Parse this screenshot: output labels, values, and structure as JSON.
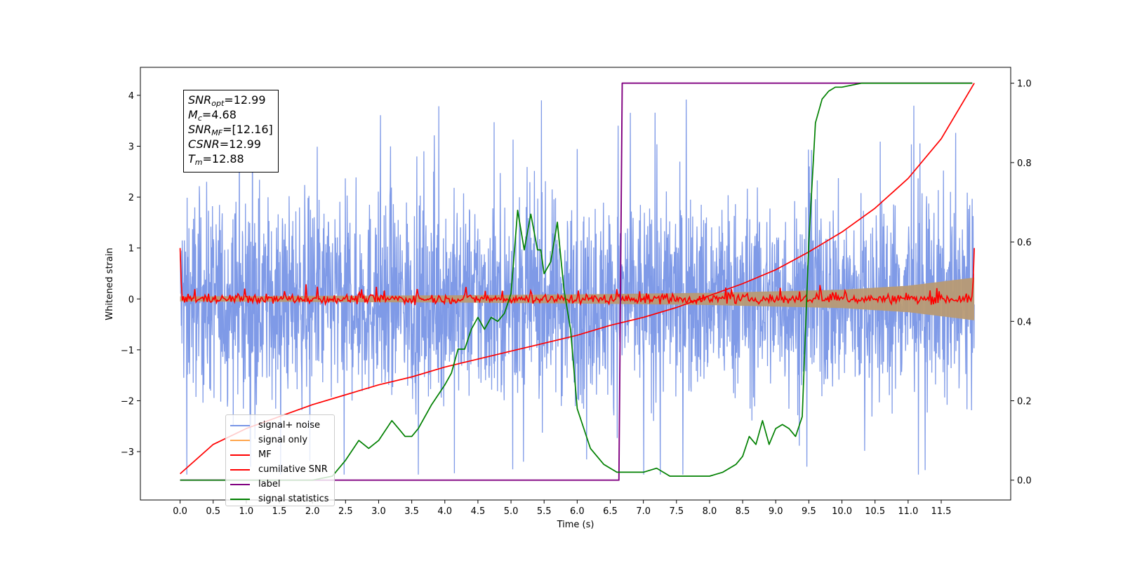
{
  "chart_data": {
    "type": "line",
    "xlabel": "Time (s)",
    "ylabel": "Whitened strain",
    "xlim": [
      -0.6,
      12.55
    ],
    "ylim": [
      -3.95,
      4.55
    ],
    "y2lim": [
      -0.05,
      1.04
    ],
    "xticks": [
      "0.0",
      "0.5",
      "1.0",
      "1.5",
      "2.0",
      "2.5",
      "3.0",
      "3.5",
      "4.0",
      "4.5",
      "5.0",
      "5.5",
      "6.0",
      "6.5",
      "7.0",
      "7.5",
      "8.0",
      "8.5",
      "9.0",
      "9.5",
      "10.0",
      "10.5",
      "11.0",
      "11.5"
    ],
    "yticks": [
      "−3",
      "−2",
      "−1",
      "0",
      "1",
      "2",
      "3",
      "4"
    ],
    "y2ticks": [
      "0.0",
      "0.2",
      "0.4",
      "0.6",
      "0.8",
      "1.0"
    ],
    "stats_box": {
      "snr_opt": "=12.99",
      "mc": "=4.68",
      "snr_mf": "=[12.16]",
      "csnr": "=12.99",
      "tm": "=12.88"
    },
    "series": [
      {
        "name": "signal+ noise",
        "axis": "left",
        "color": "#7895e6",
        "x_range": [
          0.0,
          12.0
        ],
        "approx_band": [
          -2.4,
          2.4
        ],
        "approx_extremes": [
          4.15,
          -3.45
        ]
      },
      {
        "name": "signal only",
        "axis": "left",
        "color": "#ffa64d",
        "x_range": [
          0.0,
          12.0
        ],
        "envelope_x": [
          0.0,
          2.0,
          4.0,
          6.0,
          8.0,
          10.0,
          11.0,
          12.0
        ],
        "envelope_amp": [
          0.05,
          0.06,
          0.07,
          0.09,
          0.12,
          0.18,
          0.26,
          0.42
        ]
      },
      {
        "name": "MF",
        "axis": "left",
        "color": "#ff0000",
        "x_range": [
          0.0,
          12.0
        ],
        "endpoints": [
          1.0,
          1.0
        ],
        "approx_band": [
          -0.12,
          0.25
        ]
      },
      {
        "name": "cumilative SNR",
        "axis": "right",
        "color": "#ff0000",
        "x": [
          0.0,
          0.5,
          1.0,
          1.5,
          2.0,
          2.5,
          3.0,
          3.5,
          4.0,
          4.5,
          5.0,
          5.5,
          6.0,
          6.5,
          7.0,
          7.5,
          8.0,
          8.5,
          9.0,
          9.5,
          10.0,
          10.5,
          11.0,
          11.5,
          12.0
        ],
        "values": [
          0.016,
          0.09,
          0.13,
          0.16,
          0.19,
          0.215,
          0.24,
          0.26,
          0.285,
          0.305,
          0.325,
          0.345,
          0.365,
          0.39,
          0.41,
          0.435,
          0.465,
          0.495,
          0.53,
          0.575,
          0.625,
          0.685,
          0.76,
          0.86,
          1.0
        ]
      },
      {
        "name": "label",
        "axis": "right",
        "color": "#800080",
        "x": [
          0.0,
          6.63,
          6.68,
          11.97
        ],
        "values": [
          0.0,
          0.0,
          1.0,
          1.0
        ]
      },
      {
        "name": "signal statistics",
        "axis": "right",
        "color": "#008000",
        "x": [
          0.0,
          0.5,
          1.0,
          1.5,
          2.0,
          2.3,
          2.5,
          2.7,
          2.85,
          3.0,
          3.2,
          3.3,
          3.4,
          3.5,
          3.6,
          3.8,
          4.0,
          4.1,
          4.2,
          4.3,
          4.4,
          4.5,
          4.6,
          4.7,
          4.8,
          4.9,
          5.0,
          5.1,
          5.2,
          5.3,
          5.4,
          5.45,
          5.5,
          5.6,
          5.7,
          5.8,
          5.9,
          6.0,
          6.1,
          6.2,
          6.4,
          6.6,
          6.8,
          7.0,
          7.2,
          7.4,
          7.6,
          7.8,
          8.0,
          8.2,
          8.4,
          8.5,
          8.6,
          8.7,
          8.8,
          8.9,
          9.0,
          9.1,
          9.2,
          9.3,
          9.4,
          9.5,
          9.6,
          9.7,
          9.8,
          9.9,
          10.0,
          10.3,
          10.6,
          11.0,
          11.5,
          11.97
        ],
        "values": [
          0.0,
          0.0,
          0.0,
          0.0,
          0.0,
          0.01,
          0.05,
          0.1,
          0.08,
          0.1,
          0.15,
          0.13,
          0.11,
          0.11,
          0.13,
          0.19,
          0.24,
          0.27,
          0.33,
          0.33,
          0.38,
          0.41,
          0.38,
          0.41,
          0.4,
          0.42,
          0.47,
          0.68,
          0.58,
          0.67,
          0.58,
          0.58,
          0.52,
          0.55,
          0.65,
          0.48,
          0.38,
          0.18,
          0.13,
          0.08,
          0.04,
          0.02,
          0.02,
          0.02,
          0.03,
          0.01,
          0.01,
          0.01,
          0.01,
          0.02,
          0.04,
          0.06,
          0.11,
          0.09,
          0.15,
          0.09,
          0.13,
          0.14,
          0.13,
          0.11,
          0.16,
          0.6,
          0.9,
          0.96,
          0.98,
          0.99,
          0.99,
          1.0,
          1.0,
          1.0,
          1.0,
          1.0
        ]
      }
    ],
    "legend": [
      "signal+ noise",
      "signal only",
      "MF",
      "cumilative SNR",
      "label",
      "signal statistics"
    ],
    "legend_colors": [
      "#7895e6",
      "#ffa64d",
      "#ff0000",
      "#ff0000",
      "#800080",
      "#008000"
    ],
    "legend_position": "lower-left",
    "grid": false
  }
}
